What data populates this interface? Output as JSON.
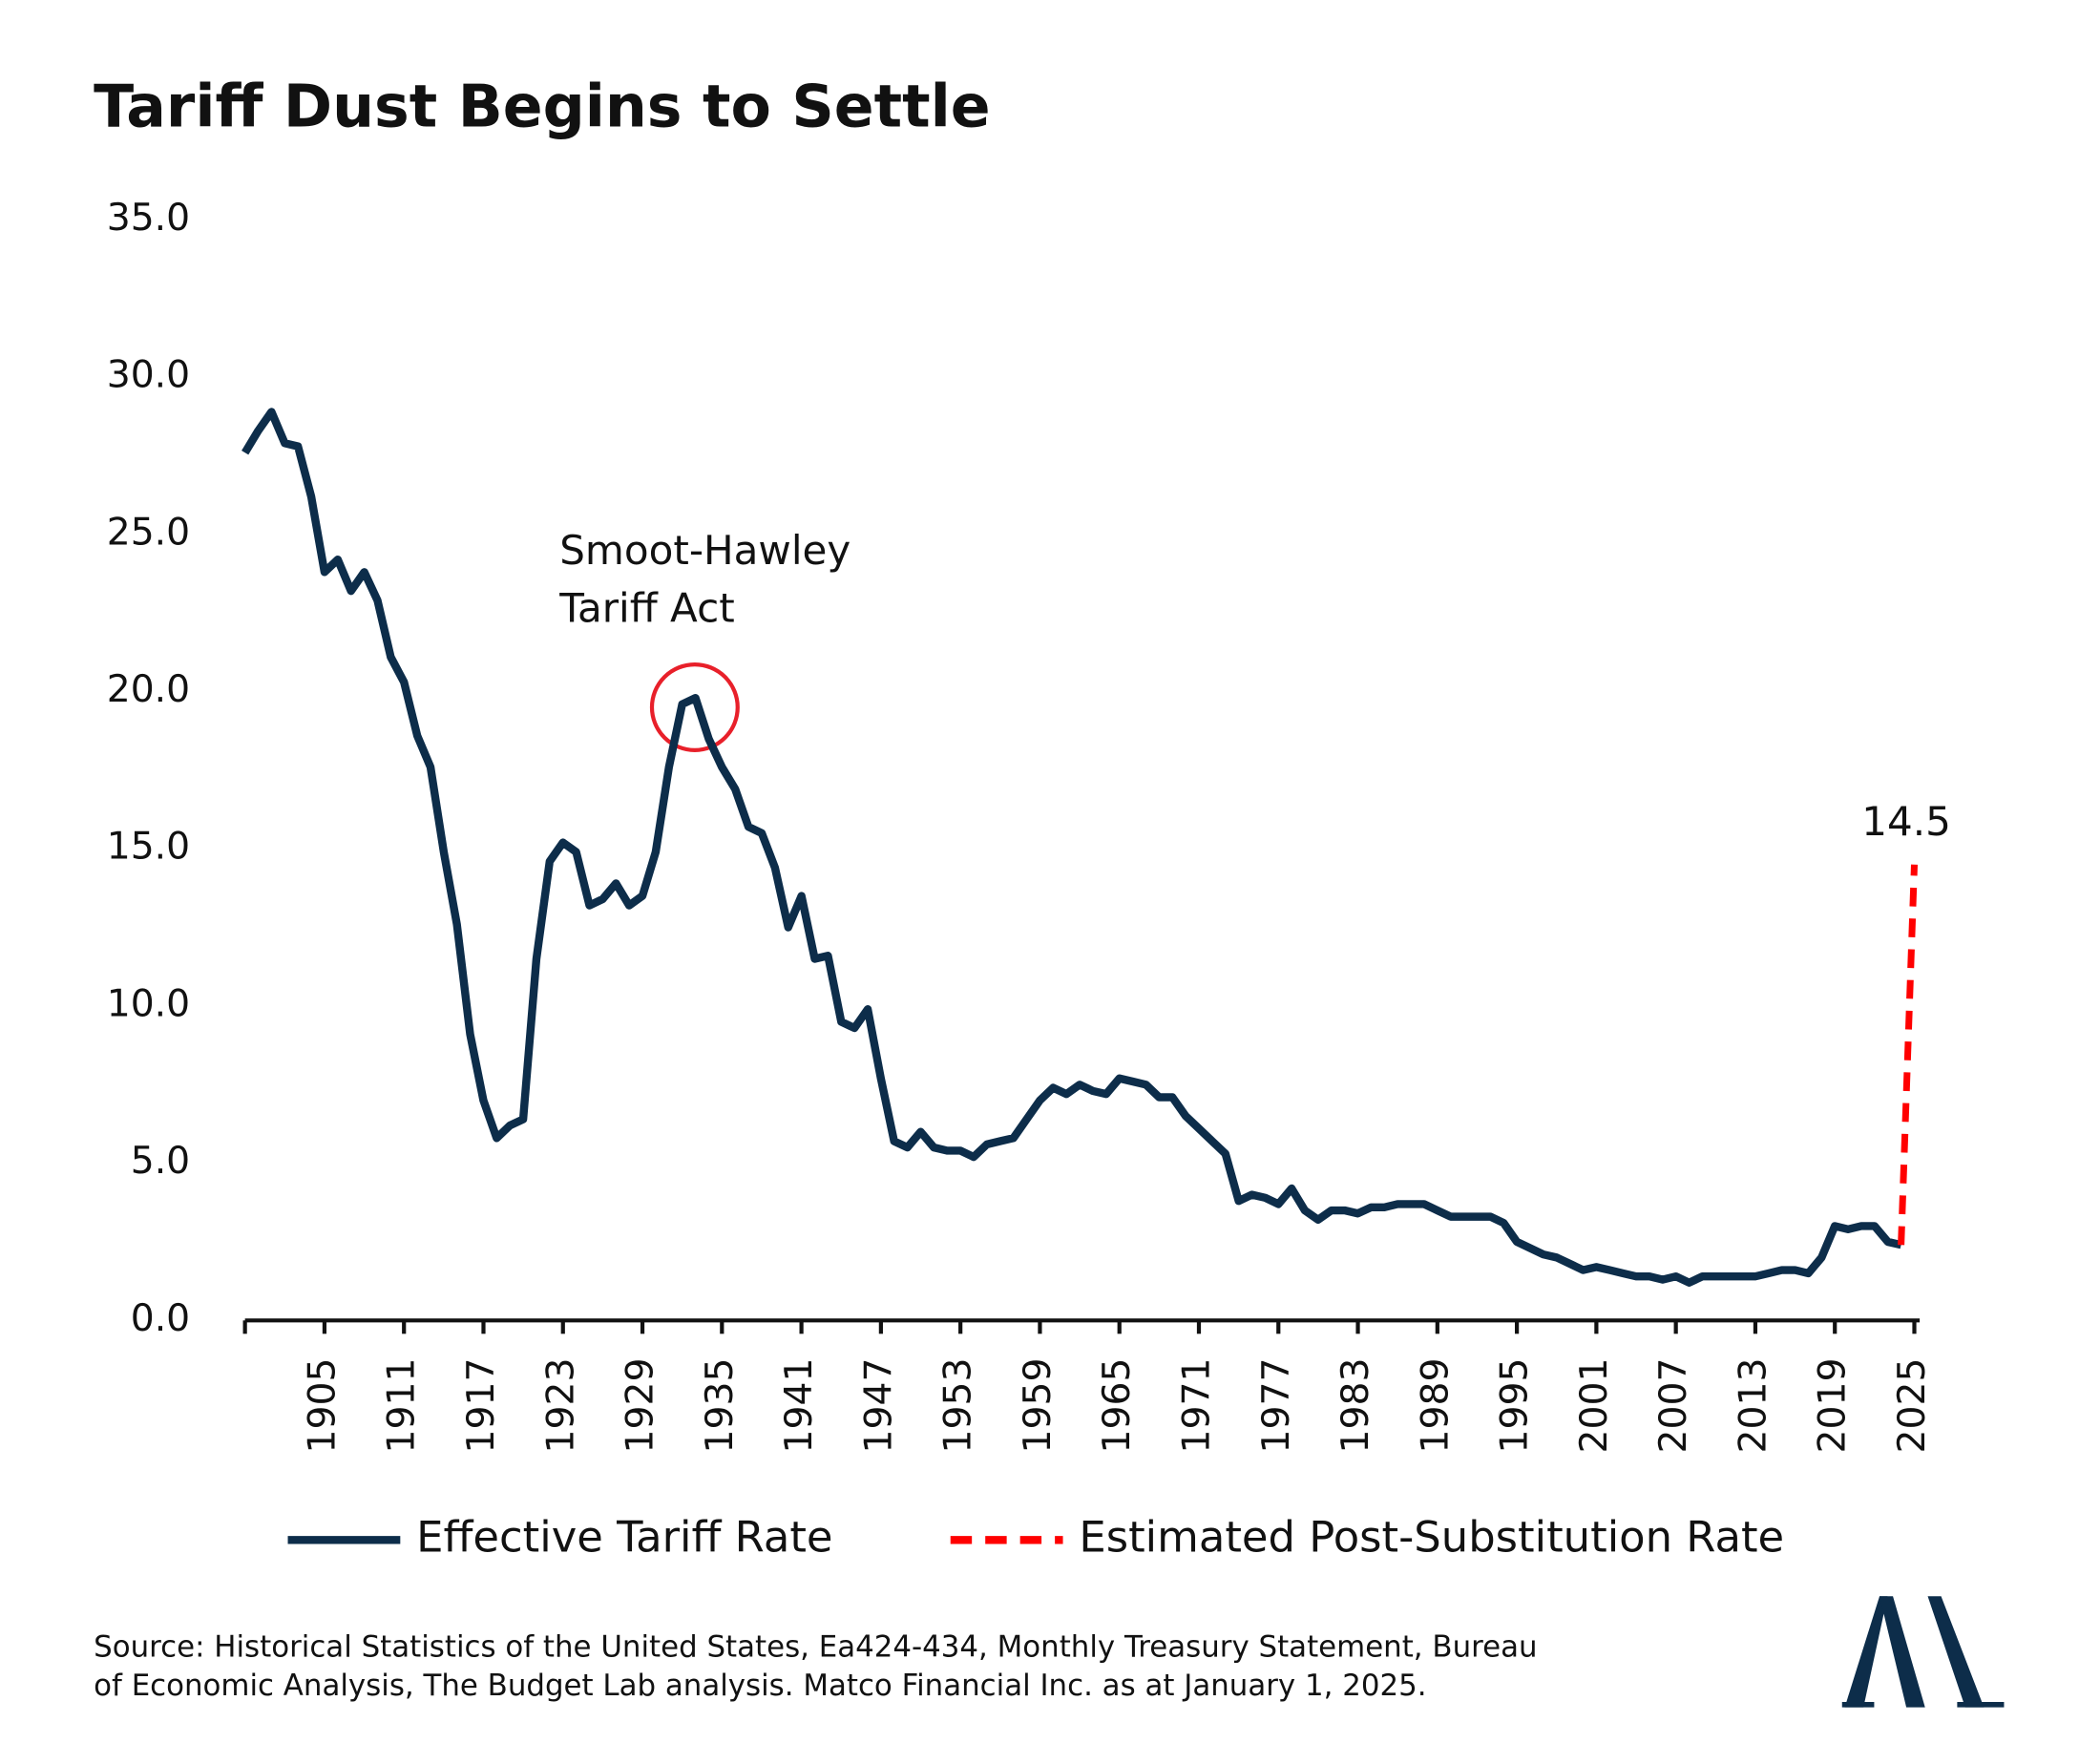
{
  "chart_data": {
    "type": "line",
    "title": "Tariff Dust Begins to Settle",
    "annotation": [
      "Smoot-Hawley",
      "Tariff Act"
    ],
    "source": [
      "Source: Historical Statistics of the United States, Ea424-434, Monthly Treasury Statement, Bureau",
      "of Economic Analysis, The Budget Lab analysis. Matco Financial Inc. as at January 1, 2025."
    ],
    "xlim": [
      1899,
      2025
    ],
    "xticks": [
      1905,
      1911,
      1917,
      1923,
      1929,
      1935,
      1941,
      1947,
      1953,
      1959,
      1965,
      1971,
      1977,
      1983,
      1989,
      1995,
      2001,
      2007,
      2013,
      2019,
      2025
    ],
    "ylim": [
      0,
      35
    ],
    "yticks": [
      {
        "value": 0,
        "label": "0.0"
      },
      {
        "value": 5,
        "label": "5.0"
      },
      {
        "value": 10,
        "label": "10.0"
      },
      {
        "value": 15,
        "label": "15.0"
      },
      {
        "value": 20,
        "label": "20.0"
      },
      {
        "value": 25,
        "label": "25.0"
      },
      {
        "value": 30,
        "label": "30.0"
      },
      {
        "value": 35,
        "label": "35.0"
      }
    ],
    "grid": false,
    "legend": "bottom",
    "series": [
      {
        "name": "Effective Tariff Rate",
        "color": "#0d2d4a",
        "dash": false,
        "x": [
          1899,
          1900,
          1901,
          1902,
          1903,
          1904,
          1905,
          1906,
          1907,
          1908,
          1909,
          1910,
          1911,
          1912,
          1913,
          1914,
          1915,
          1916,
          1917,
          1918,
          1919,
          1920,
          1921,
          1922,
          1923,
          1924,
          1925,
          1926,
          1927,
          1928,
          1929,
          1930,
          1931,
          1932,
          1933,
          1934,
          1935,
          1936,
          1937,
          1938,
          1939,
          1940,
          1941,
          1942,
          1943,
          1944,
          1945,
          1946,
          1947,
          1948,
          1949,
          1950,
          1951,
          1952,
          1953,
          1954,
          1955,
          1956,
          1957,
          1958,
          1959,
          1960,
          1961,
          1962,
          1963,
          1964,
          1965,
          1966,
          1967,
          1968,
          1969,
          1970,
          1971,
          1972,
          1973,
          1974,
          1975,
          1976,
          1977,
          1978,
          1979,
          1980,
          1981,
          1982,
          1983,
          1984,
          1985,
          1986,
          1987,
          1988,
          1989,
          1990,
          1991,
          1992,
          1993,
          1994,
          1995,
          1996,
          1997,
          1998,
          1999,
          2000,
          2001,
          2002,
          2003,
          2004,
          2005,
          2006,
          2007,
          2008,
          2009,
          2010,
          2011,
          2012,
          2013,
          2014,
          2015,
          2016,
          2017,
          2018,
          2019,
          2020,
          2021,
          2022,
          2023,
          2024
        ],
        "values": [
          27.6,
          28.3,
          28.9,
          27.9,
          27.8,
          26.2,
          23.8,
          24.2,
          23.2,
          23.8,
          22.9,
          21.1,
          20.3,
          18.6,
          17.6,
          14.9,
          12.6,
          9.1,
          7.0,
          5.8,
          6.2,
          6.4,
          11.5,
          14.6,
          15.2,
          14.9,
          13.2,
          13.4,
          13.9,
          13.2,
          13.5,
          14.9,
          17.6,
          19.6,
          19.8,
          18.5,
          17.6,
          16.9,
          15.7,
          15.5,
          14.4,
          12.5,
          13.5,
          11.5,
          11.6,
          9.5,
          9.3,
          9.9,
          7.7,
          5.7,
          5.5,
          6.0,
          5.5,
          5.4,
          5.4,
          5.2,
          5.6,
          5.7,
          5.8,
          6.4,
          7.0,
          7.4,
          7.2,
          7.5,
          7.3,
          7.2,
          7.7,
          7.6,
          7.5,
          7.1,
          7.1,
          6.5,
          6.1,
          5.7,
          5.3,
          3.8,
          4.0,
          3.9,
          3.7,
          4.2,
          3.5,
          3.2,
          3.5,
          3.5,
          3.4,
          3.6,
          3.6,
          3.7,
          3.7,
          3.7,
          3.5,
          3.3,
          3.3,
          3.3,
          3.3,
          3.1,
          2.5,
          2.3,
          2.1,
          2.0,
          1.8,
          1.6,
          1.7,
          1.6,
          1.5,
          1.4,
          1.4,
          1.3,
          1.4,
          1.2,
          1.4,
          1.4,
          1.4,
          1.4,
          1.4,
          1.5,
          1.6,
          1.6,
          1.5,
          2.0,
          3.0,
          2.9,
          3.0,
          3.0,
          2.5,
          2.4
        ]
      },
      {
        "name": "Estimated Post-Substitution Rate",
        "color": "#ff0000",
        "dash": true,
        "x": [
          2024,
          2025
        ],
        "values": [
          2.4,
          14.5
        ]
      }
    ]
  }
}
